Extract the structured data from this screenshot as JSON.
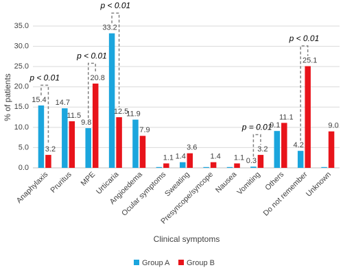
{
  "chart_data": {
    "type": "bar",
    "y_label": "% of patients",
    "x_label": "Clinical symptoms",
    "categories": [
      "Anaphylaxis",
      "Pruritus",
      "MPE",
      "Urticaria",
      "Angioedema",
      "Ocular symptoms",
      "Sweating",
      "Presyncope/syncope",
      "Nausea",
      "Vomiting",
      "Others",
      "Do not remember",
      "Unknown"
    ],
    "series": [
      {
        "name": "Group A",
        "color": "#1ba5dd",
        "values": [
          15.4,
          14.7,
          9.8,
          33.2,
          11.9,
          0.2,
          1.4,
          0.2,
          0.2,
          0.3,
          9.1,
          4.2,
          0.2
        ],
        "value_labels": [
          "15.4",
          "14.7",
          "9.8",
          "33.2",
          "11.9",
          null,
          "1.4",
          null,
          null,
          "0.3",
          "9.1",
          "4.2",
          null
        ]
      },
      {
        "name": "Group B",
        "color": "#e8141b",
        "values": [
          3.2,
          11.5,
          20.8,
          12.5,
          7.9,
          1.1,
          3.6,
          1.4,
          1.1,
          3.2,
          11.1,
          25.1,
          9.0
        ],
        "value_labels": [
          "3.2",
          "11.5",
          "20.8",
          "12.5",
          "7.9",
          "1.1",
          "3.6",
          "1.4",
          "1.1",
          "3.2",
          "11.1",
          "25.1",
          "9.0"
        ]
      }
    ],
    "ylim": [
      0,
      35
    ],
    "yticks": [
      {
        "value": 0,
        "label": "0.0"
      },
      {
        "value": 5,
        "label": "5.0"
      },
      {
        "value": 10,
        "label": "10.0"
      },
      {
        "value": 15,
        "label": "15.0"
      },
      {
        "value": 20,
        "label": "20.0"
      },
      {
        "value": 25,
        "label": "25.0"
      },
      {
        "value": 30,
        "label": "30.0"
      },
      {
        "value": 35,
        "label": "35.0"
      }
    ],
    "grid": true,
    "legend": "bottom",
    "annotations": [
      {
        "text": "p < 0.01",
        "category": 0
      },
      {
        "text": "p < 0.01",
        "category": 2
      },
      {
        "text": "p < 0.01",
        "category": 3
      },
      {
        "text": "p = 0.01",
        "category": 9
      },
      {
        "text": "p < 0.01",
        "category": 11
      }
    ]
  }
}
